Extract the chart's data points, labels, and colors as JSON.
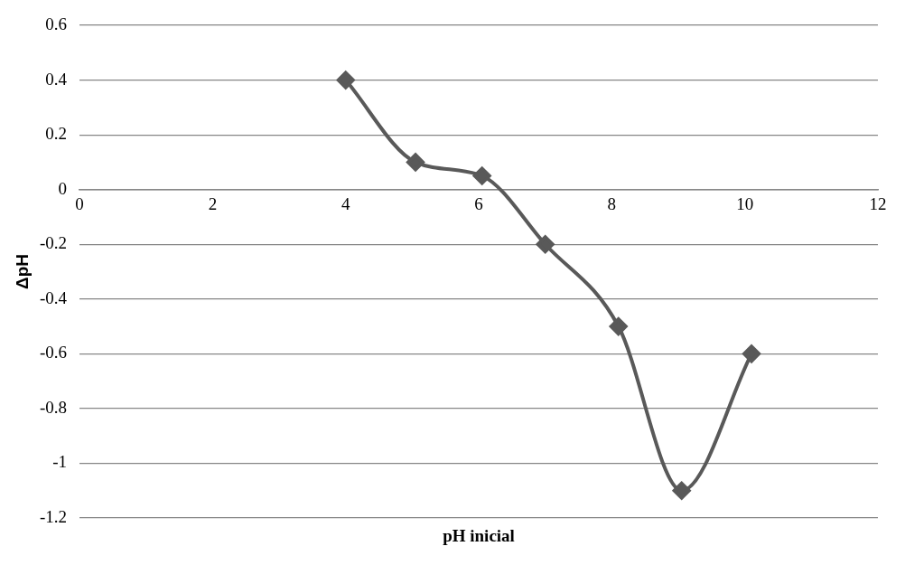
{
  "chart_data": {
    "type": "line",
    "xlabel": "pH inicial",
    "ylabel": "ΔpH",
    "x": [
      4,
      5.05,
      6.05,
      7,
      8.1,
      9.05,
      10.1
    ],
    "series": [
      {
        "color": "#595959",
        "values": [
          0.4,
          0.1,
          0.05,
          -0.2,
          -0.5,
          -1.1,
          -0.6
        ]
      }
    ],
    "xlim": [
      0,
      12
    ],
    "xticks": [
      0,
      2,
      4,
      6,
      8,
      10,
      12
    ],
    "ylim": [
      -1.2,
      0.6
    ],
    "yticks": [
      -1.2,
      -1,
      -0.8,
      -0.6,
      -0.4,
      -0.2,
      0,
      0.2,
      0.4,
      0.6
    ],
    "grid": "y",
    "legend": false,
    "marker": "diamond",
    "line_style": "solid"
  }
}
